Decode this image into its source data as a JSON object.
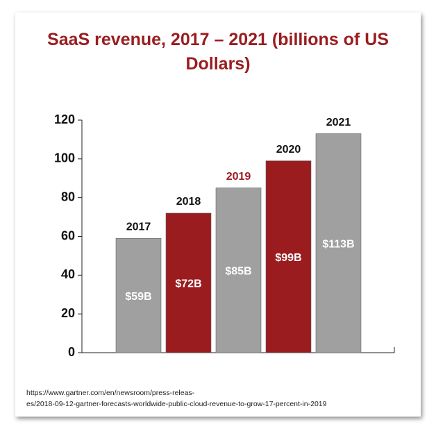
{
  "chart_data": {
    "type": "bar",
    "title": "SaaS revenue, 2017 – 2021 (billions of US Dollars)",
    "categories": [
      "2017",
      "2018",
      "2019",
      "2020",
      "2021"
    ],
    "values": [
      59,
      72,
      85,
      99,
      113
    ],
    "value_labels": [
      "$59B",
      "$72B",
      "$85B",
      "$99B",
      "$113B"
    ],
    "colors": [
      "#a0a0a0",
      "#9a1c1f",
      "#a0a0a0",
      "#9a1c1f",
      "#a0a0a0"
    ],
    "category_label_colors": [
      "#111111",
      "#111111",
      "#9a1c1f",
      "#111111",
      "#111111"
    ],
    "ylim": [
      0,
      120
    ],
    "yticks": [
      0,
      20,
      40,
      60,
      80,
      100,
      120
    ],
    "grid": false,
    "source": [
      "https://www.gartner.com/en/newsroom/press-releas-",
      "es/2018-09-12-gartner-forecasts-worldwide-public-cloud-revenue-to-grow-17-percent-in-2019"
    ]
  }
}
